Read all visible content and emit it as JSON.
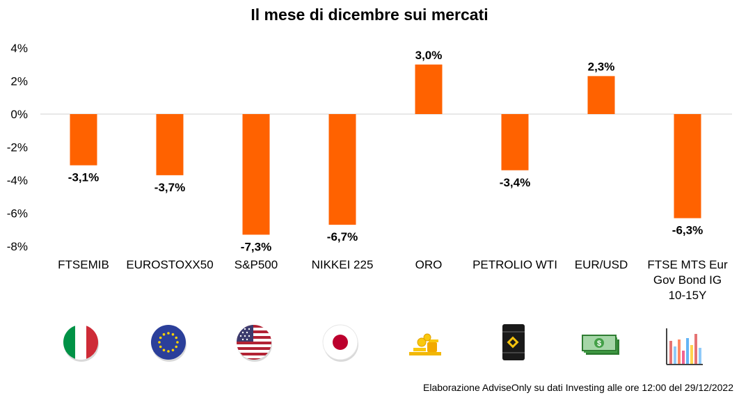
{
  "chart_data": {
    "type": "bar",
    "title": "Il mese di dicembre sui mercati",
    "categories": [
      "FTSEMIB",
      "EUROSTOXX50",
      "S&P500",
      "NIKKEI 225",
      "ORO",
      "PETROLIO WTI",
      "EUR/USD",
      "FTSE MTS Eur Gov Bond IG 10-15Y"
    ],
    "category_lines": [
      [
        "FTSEMIB"
      ],
      [
        "EUROSTOXX50"
      ],
      [
        "S&P500"
      ],
      [
        "NIKKEI 225"
      ],
      [
        "ORO"
      ],
      [
        "PETROLIO WTI"
      ],
      [
        "EUR/USD"
      ],
      [
        "FTSE MTS Eur",
        "Gov Bond IG",
        "10-15Y"
      ]
    ],
    "values": [
      -3.1,
      -3.7,
      -7.3,
      -6.7,
      3.0,
      -3.4,
      2.3,
      -6.3
    ],
    "value_labels": [
      "-3,1%",
      "-3,7%",
      "-7,3%",
      "-6,7%",
      "3,0%",
      "-3,4%",
      "2,3%",
      "-6,3%"
    ],
    "yticks": [
      4,
      2,
      0,
      -2,
      -4,
      -6,
      -8
    ],
    "ytick_labels": [
      "4%",
      "2%",
      "0%",
      "-2%",
      "-4%",
      "-6%",
      "-8%"
    ],
    "ylim": [
      -8,
      4
    ],
    "bar_color": "#FF6200",
    "grid": false
  },
  "icons": [
    "italy-flag-icon",
    "eu-flag-icon",
    "usa-flag-icon",
    "japan-flag-icon",
    "gold-coins-icon",
    "oil-barrel-icon",
    "dollar-banknotes-icon",
    "bond-bar-chart-icon"
  ],
  "source_note": "Elaborazione AdviseOnly su dati Investing alle ore 12:00 del 29/12/2022"
}
